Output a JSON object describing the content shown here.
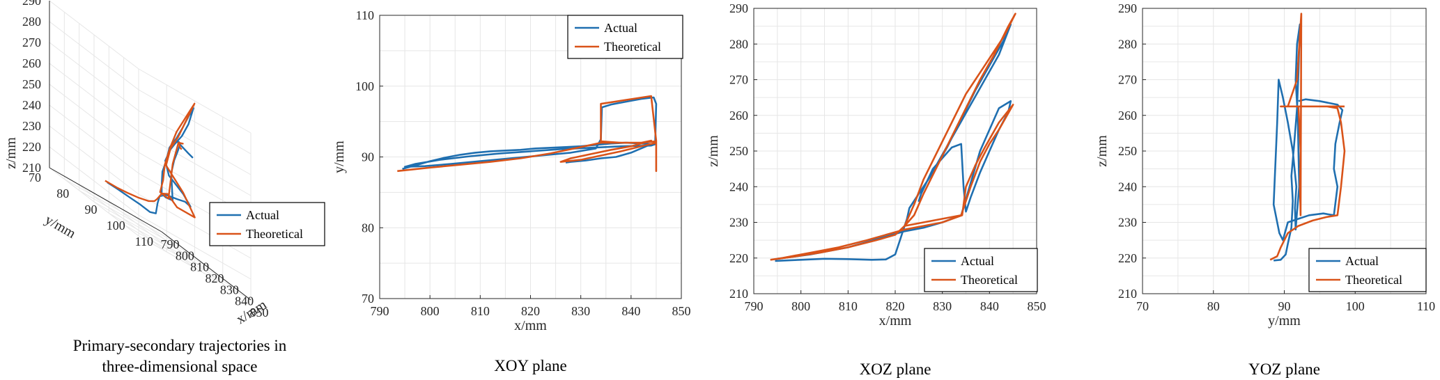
{
  "colors": {
    "actual": "#1f6fb0",
    "theoretical": "#d95319"
  },
  "chart_data": [
    {
      "type": "line",
      "projection": "3d",
      "caption_lines": [
        "Primary-secondary trajectories in",
        "three-dimensional space"
      ],
      "xlabel": "x/mm",
      "ylabel": "y/mm",
      "zlabel": "z/mm",
      "xlim": [
        790,
        850
      ],
      "ylim": [
        70,
        110
      ],
      "zlim": [
        210,
        290
      ],
      "xticks": [
        790,
        800,
        810,
        820,
        830,
        840,
        850
      ],
      "yticks": [
        70,
        80,
        90,
        100,
        110
      ],
      "zticks": [
        210,
        220,
        230,
        240,
        250,
        260,
        270,
        280,
        290
      ],
      "grid": true,
      "legend_position": "bottom-right",
      "legend": [
        "Actual",
        "Theoretical"
      ],
      "series": [
        {
          "name": "Actual",
          "points": [
            [
              794.5,
              88.2,
              219.4
            ],
            [
              800,
              89.0,
              219.8
            ],
            [
              806,
              89.8,
              220.0
            ],
            [
              812,
              90.5,
              220.3
            ],
            [
              818,
              91.0,
              220.1
            ],
            [
              821,
              91.5,
              221.5
            ],
            [
              822,
              91.6,
              227.0
            ],
            [
              823,
              91.8,
              231.0
            ],
            [
              827,
              92.0,
              234.0
            ],
            [
              834,
              92.3,
              236.0
            ],
            [
              835,
              94.5,
              237.0
            ],
            [
              834,
              97.0,
              236.0
            ],
            [
              830,
              96.5,
              239.5
            ],
            [
              827,
              93.0,
              244.0
            ],
            [
              826,
              92.2,
              250.0
            ],
            [
              830,
              91.8,
              257.0
            ],
            [
              834,
              91.5,
              262.0
            ],
            [
              838,
              91.8,
              268.0
            ],
            [
              842,
              92.0,
              276.0
            ],
            [
              845,
              92.2,
              285.5
            ],
            [
              842,
              92.1,
              280.0
            ],
            [
              838,
              92.0,
              272.0
            ],
            [
              834,
              92.0,
              265.0
            ],
            [
              830,
              91.6,
              258.0
            ],
            [
              828,
              91.4,
              250.0
            ],
            [
              826,
              91.2,
              244.0
            ],
            [
              825,
              91.5,
              238.0
            ],
            [
              824,
              92.0,
              233.0
            ],
            [
              822,
              94.5,
              232.0
            ],
            [
              821,
              97.5,
              232.3
            ],
            [
              821,
              97.0,
              245.0
            ],
            [
              822,
              97.5,
              252.0
            ],
            [
              824,
              97.8,
              258.0
            ],
            [
              826,
              97.5,
              262.0
            ],
            [
              828,
              96.0,
              263.0
            ],
            [
              830,
              94.5,
              262.8
            ],
            [
              834,
              93.5,
              262.7
            ],
            [
              838,
              92.5,
              262.5
            ],
            [
              842,
              92.0,
              262.0
            ],
            [
              845,
              92.0,
              261.5
            ]
          ]
        },
        {
          "name": "Theoretical",
          "points": [
            [
              793.5,
              88.0,
              219.5
            ],
            [
              800,
              88.7,
              220.3
            ],
            [
              806,
              89.3,
              221.5
            ],
            [
              812,
              89.9,
              223.0
            ],
            [
              818,
              90.5,
              225.0
            ],
            [
              821,
              91.0,
              227.0
            ],
            [
              822,
              91.5,
              229.0
            ],
            [
              824,
              92.0,
              233.0
            ],
            [
              828,
              92.0,
              235.0
            ],
            [
              834,
              92.2,
              232.0
            ],
            [
              834,
              98.5,
              232.0
            ],
            [
              829,
              97.0,
              240.0
            ],
            [
              826,
              92.5,
              248.0
            ],
            [
              830,
              92.0,
              258.0
            ],
            [
              835,
              92.0,
              266.0
            ],
            [
              840,
              92.0,
              276.0
            ],
            [
              845.5,
              92.3,
              288.0
            ],
            [
              840,
              92.0,
              278.0
            ],
            [
              834,
              92.0,
              268.0
            ],
            [
              830,
              91.8,
              258.0
            ],
            [
              827,
              91.5,
              248.0
            ],
            [
              825,
              92.0,
              240.0
            ],
            [
              822,
              92.5,
              233.0
            ],
            [
              821,
              96.0,
              232.0
            ],
            [
              822,
              97.0,
              250.0
            ],
            [
              824,
              98.0,
              262.0
            ],
            [
              826,
              98.5,
              263.0
            ],
            [
              830,
              95.0,
              262.8
            ],
            [
              836,
              92.0,
              262.6
            ],
            [
              842,
              89.0,
              262.5
            ],
            [
              845,
              88.0,
              262.5
            ]
          ]
        }
      ]
    },
    {
      "type": "line",
      "caption": "XOY plane",
      "xlabel": "x/mm",
      "ylabel": "y/mm",
      "xlim": [
        790,
        850
      ],
      "ylim": [
        70,
        110
      ],
      "xticks": [
        790,
        800,
        810,
        820,
        830,
        840,
        850
      ],
      "yticks": [
        70,
        80,
        90,
        100,
        110
      ],
      "grid": true,
      "legend_position": "top-right",
      "legend": [
        "Actual",
        "Theoretical"
      ],
      "series": [
        {
          "name": "Actual",
          "x": [
            794.5,
            797,
            800,
            803,
            806,
            809,
            812,
            815,
            818,
            821,
            824,
            827,
            830,
            833,
            836,
            839,
            842,
            844,
            844.8,
            844,
            838,
            832,
            826,
            820,
            814,
            808,
            802,
            797,
            795,
            799,
            804,
            810,
            816,
            822,
            828,
            833,
            834,
            834.2,
            836,
            839,
            842,
            844.5,
            845,
            844.8,
            843,
            840,
            837,
            834,
            831,
            828,
            827
          ],
          "y": [
            88.3,
            88.8,
            89.4,
            89.9,
            90.3,
            90.6,
            90.8,
            90.9,
            91.0,
            91.2,
            91.3,
            91.4,
            91.5,
            91.7,
            91.9,
            92.0,
            91.9,
            91.8,
            91.8,
            91.6,
            91.5,
            91.3,
            91.1,
            90.8,
            90.5,
            90.1,
            89.6,
            89.0,
            88.6,
            88.7,
            89.0,
            89.4,
            89.8,
            90.2,
            90.6,
            91.2,
            92.5,
            97.0,
            97.4,
            97.8,
            98.2,
            98.4,
            97.5,
            92.0,
            91.5,
            90.6,
            90.0,
            89.8,
            89.5,
            89.3,
            89.2
          ]
        },
        {
          "name": "Theoretical",
          "x": [
            793.5,
            800,
            806,
            812,
            818,
            824,
            830,
            834,
            838,
            842,
            845,
            845,
            845,
            844,
            834,
            834,
            838,
            842,
            844,
            840,
            836,
            832,
            828,
            826,
            830,
            834,
            838,
            842,
            845
          ],
          "y": [
            88.0,
            88.5,
            88.9,
            89.3,
            89.8,
            90.5,
            91.4,
            92.0,
            92.0,
            92.0,
            92.2,
            88.0,
            92.3,
            98.6,
            97.5,
            92.2,
            92.0,
            92.0,
            92.3,
            91.5,
            91.0,
            90.4,
            89.8,
            89.3,
            89.6,
            90.2,
            90.8,
            91.5,
            92.0
          ]
        }
      ]
    },
    {
      "type": "line",
      "caption": "XOZ plane",
      "xlabel": "x/mm",
      "ylabel": "z/mm",
      "xlim": [
        790,
        850
      ],
      "ylim": [
        210,
        290
      ],
      "xticks": [
        790,
        800,
        810,
        820,
        830,
        840,
        850
      ],
      "yticks": [
        210,
        220,
        230,
        240,
        250,
        260,
        270,
        280,
        290
      ],
      "grid": true,
      "legend_position": "bottom-right",
      "legend": [
        "Actual",
        "Theoretical"
      ],
      "series": [
        {
          "name": "Actual",
          "x": [
            794.5,
            800,
            805,
            810,
            815,
            818,
            820,
            821,
            822,
            822.5,
            823,
            825,
            827,
            830,
            833,
            836,
            839,
            842,
            844.5,
            843,
            840,
            837,
            834,
            831,
            828,
            826,
            825,
            825.5,
            828,
            832,
            834,
            834.5,
            835,
            836,
            838,
            840,
            842,
            844,
            844.5,
            842,
            838,
            834,
            830,
            826,
            822,
            818,
            814,
            810,
            806,
            802,
            798,
            795
          ],
          "y": [
            219.2,
            219.5,
            219.8,
            219.7,
            219.5,
            219.6,
            221.0,
            225.0,
            229.0,
            231.0,
            234.0,
            238.0,
            242.0,
            249.0,
            256.0,
            263.0,
            270.0,
            277.0,
            285.5,
            281.0,
            274.0,
            267.0,
            259.0,
            251.0,
            244.0,
            240.0,
            236.0,
            238.0,
            245.0,
            251.0,
            252.0,
            240.0,
            233.0,
            237.0,
            244.0,
            250.0,
            256.0,
            261.0,
            264.0,
            262.0,
            250.0,
            232.0,
            230.0,
            228.5,
            227.5,
            226.0,
            224.5,
            223.0,
            222.0,
            221.0,
            220.3,
            219.8
          ]
        },
        {
          "name": "Theoretical",
          "x": [
            793.5,
            798,
            804,
            810,
            816,
            820,
            822,
            824,
            826,
            829,
            832,
            835,
            838,
            841,
            843,
            845.5,
            844,
            841,
            838,
            835,
            832,
            829,
            826,
            824,
            822,
            826,
            830,
            834,
            836,
            838,
            840,
            842,
            845,
            842,
            839,
            837,
            835,
            834.2,
            830,
            826,
            822,
            818,
            814,
            808,
            802,
            796,
            793.5
          ],
          "y": [
            219.5,
            220.3,
            221.5,
            223.0,
            225.0,
            226.5,
            229.0,
            235.0,
            242.0,
            250.0,
            258.0,
            266.0,
            272.0,
            278.0,
            282.0,
            288.5,
            285.0,
            277.0,
            270.0,
            262.0,
            254.0,
            246.0,
            238.0,
            232.0,
            229.0,
            230.0,
            231.0,
            232.0,
            240.0,
            247.0,
            252.0,
            256.0,
            263.0,
            258.0,
            251.0,
            246.0,
            240.0,
            232.0,
            230.0,
            229.0,
            228.0,
            226.5,
            225.0,
            223.0,
            221.5,
            220.0,
            219.5
          ]
        }
      ]
    },
    {
      "type": "line",
      "caption": "YOZ plane",
      "xlabel": "y/mm",
      "ylabel": "z/mm",
      "xlim": [
        70,
        110
      ],
      "ylim": [
        210,
        290
      ],
      "xticks": [
        70,
        80,
        90,
        100,
        110
      ],
      "yticks": [
        210,
        220,
        230,
        240,
        250,
        260,
        270,
        280,
        290
      ],
      "grid": true,
      "legend_position": "bottom-right",
      "legend": [
        "Actual",
        "Theoretical"
      ],
      "series": [
        {
          "name": "Actual",
          "x": [
            88.5,
            89.5,
            90.2,
            90.5,
            91.0,
            91.2,
            91.0,
            91.4,
            91.8,
            92.0,
            92.2,
            91.8,
            91.6,
            91.9,
            92.0,
            92.1,
            91.8,
            91.6,
            91.5,
            91.7,
            91.2,
            90.5,
            89.8,
            89.2,
            89.0,
            88.5,
            89.3,
            89.8,
            90.5,
            92.0,
            93.5,
            95.5,
            97.0,
            97.5,
            97.0,
            97.2,
            97.8,
            98.2,
            97.5,
            95.0,
            93.0,
            92.0
          ],
          "y": [
            219.3,
            219.5,
            221.0,
            224.0,
            228.5,
            236.0,
            243.0,
            252.0,
            262.0,
            272.0,
            285.5,
            280.0,
            270.0,
            260.0,
            250.0,
            240.0,
            233.0,
            228.0,
            234.0,
            240.0,
            250.0,
            258.0,
            265.0,
            270.0,
            258.0,
            235.0,
            227.0,
            225.0,
            230.0,
            231.0,
            232.0,
            232.5,
            232.0,
            240.0,
            245.0,
            252.0,
            258.0,
            261.5,
            263.0,
            264.0,
            264.5,
            264.0
          ]
        },
        {
          "name": "Theoretical",
          "x": [
            88.0,
            89.0,
            89.5,
            90.5,
            92.0,
            94.0,
            96.0,
            97.5,
            98.0,
            98.5,
            98.0,
            97.5,
            96.0,
            94.0,
            92.0,
            92.3,
            92.2,
            92.3,
            92.4,
            91.8,
            90.5,
            89.5,
            92.0,
            95.0,
            98.5
          ],
          "y": [
            219.5,
            220.5,
            223.0,
            227.0,
            229.0,
            230.5,
            231.5,
            232.0,
            240.0,
            250.0,
            258.0,
            262.0,
            262.5,
            262.5,
            262.5,
            250.0,
            240.0,
            232.0,
            288.5,
            270.0,
            262.5,
            262.5,
            262.5,
            262.5,
            262.5
          ]
        }
      ]
    }
  ]
}
